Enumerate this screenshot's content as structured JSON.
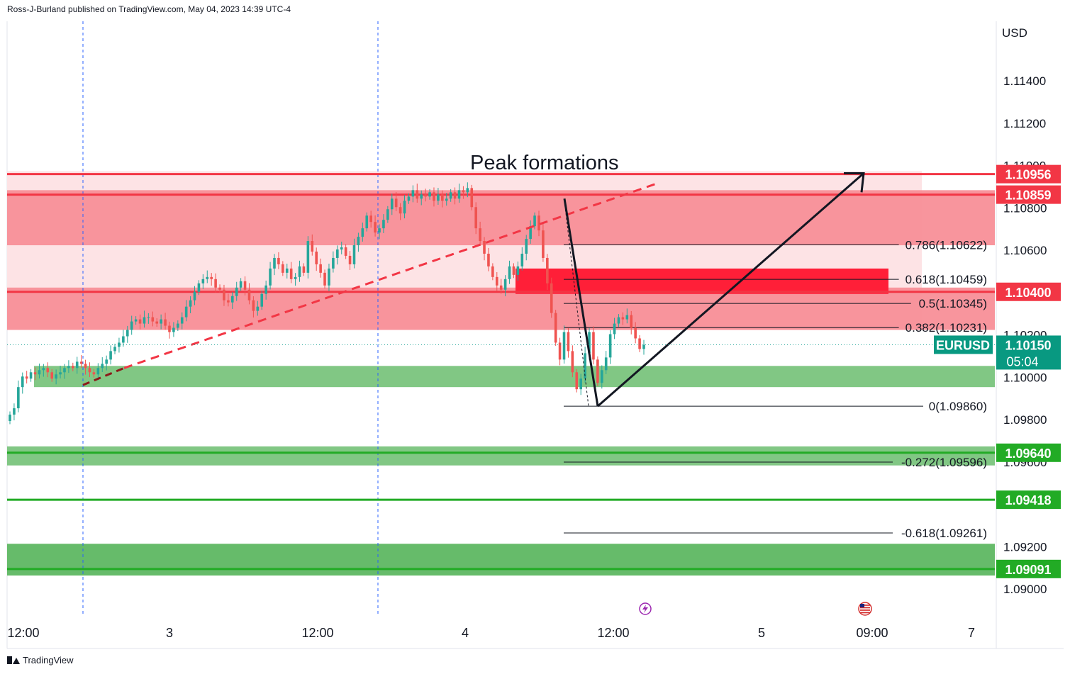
{
  "header": {
    "publisher_line": "Ross-J-Burland published on TradingView.com, May 04, 2023 14:39 UTC-4"
  },
  "footer": {
    "brand": "TradingView"
  },
  "chart_data": {
    "type": "candlestick",
    "symbol": "EURUSD",
    "currency": "USD",
    "annotation_title": "Peak formations",
    "last_price": 1.1015,
    "last_price_label": "1.10150",
    "countdown": "05:04",
    "ylim": [
      1.0885,
      1.1165
    ],
    "y_ticks": [
      1.114,
      1.112,
      1.11,
      1.108,
      1.106,
      1.104,
      1.102,
      1.1,
      1.098,
      1.096,
      1.094,
      1.092,
      1.09
    ],
    "y_tick_labels": [
      "1.11400",
      "1.11200",
      "1.11000",
      "1.10800",
      "1.10600",
      "",
      "1.10200",
      "1.10000",
      "1.09800",
      "1.09600",
      "",
      "1.09200",
      "1.09000"
    ],
    "x_tick_labels": [
      "12:00",
      "3",
      "12:00",
      "4",
      "12:00",
      "5",
      "09:00",
      "7"
    ],
    "price_lines": [
      {
        "value": 1.10956,
        "label": "1.10956",
        "color": "#f23645"
      },
      {
        "value": 1.10859,
        "label": "1.10859",
        "color": "#f23645"
      },
      {
        "value": 1.104,
        "label": "1.10400",
        "color": "#f23645"
      },
      {
        "value": 1.0964,
        "label": "1.09640",
        "color": "#22ab25"
      },
      {
        "value": 1.09418,
        "label": "1.09418",
        "color": "#22ab25"
      },
      {
        "value": 1.09091,
        "label": "1.09091",
        "color": "#22ab25"
      }
    ],
    "resistance_zones": [
      {
        "from": 1.1062,
        "to": 1.1088
      },
      {
        "from": 1.1022,
        "to": 1.1042
      },
      {
        "from": 1.1039,
        "to": 1.1051
      }
    ],
    "support_zones": [
      {
        "from": 1.0995,
        "to": 1.1005
      },
      {
        "from": 1.0958,
        "to": 1.0967
      },
      {
        "from": 1.0906,
        "to": 1.0921
      }
    ],
    "fib_levels": [
      {
        "ratio": "0.786",
        "value": 1.10622,
        "label": "0.786(1.10622)"
      },
      {
        "ratio": "0.618",
        "value": 1.10459,
        "label": "0.618(1.10459)"
      },
      {
        "ratio": "0.5",
        "value": 1.10345,
        "label": "0.5(1.10345)"
      },
      {
        "ratio": "0.382",
        "value": 1.10231,
        "label": "0.382(1.10231)"
      },
      {
        "ratio": "0",
        "value": 1.0986,
        "label": "0(1.09860)"
      },
      {
        "ratio": "-0.272",
        "value": 1.09596,
        "label": "-0.272(1.09596)"
      },
      {
        "ratio": "-0.618",
        "value": 1.09261,
        "label": "-0.618(1.09261)"
      }
    ],
    "closes": [
      1.0982,
      1.0985,
      1.0995,
      1.1,
      1.0999,
      1.1002,
      1.1001,
      1.1003,
      1.1004,
      1.1002,
      1.0999,
      1.1001,
      1.1002,
      1.1004,
      1.1005,
      1.1004,
      1.1007,
      1.1006,
      1.1004,
      1.1002,
      1.1001,
      1.1004,
      1.1006,
      1.1008,
      1.1012,
      1.1014,
      1.1016,
      1.1019,
      1.1022,
      1.1026,
      1.1027,
      1.1025,
      1.1028,
      1.1028,
      1.1026,
      1.1025,
      1.1027,
      1.1024,
      1.1021,
      1.1023,
      1.1025,
      1.1028,
      1.1033,
      1.1036,
      1.104,
      1.1044,
      1.1046,
      1.1047,
      1.1046,
      1.1042,
      1.1041,
      1.1036,
      1.1035,
      1.1038,
      1.1042,
      1.1045,
      1.1041,
      1.1036,
      1.1031,
      1.1033,
      1.1039,
      1.1043,
      1.1051,
      1.1056,
      1.1053,
      1.1049,
      1.1051,
      1.1046,
      1.1047,
      1.1052,
      1.1049,
      1.1064,
      1.1059,
      1.1053,
      1.1049,
      1.1043,
      1.1051,
      1.1056,
      1.106,
      1.1061,
      1.1057,
      1.1053,
      1.1062,
      1.1066,
      1.107,
      1.1076,
      1.1073,
      1.1068,
      1.107,
      1.1074,
      1.1079,
      1.1084,
      1.108,
      1.1077,
      1.1083,
      1.1085,
      1.1088,
      1.1084,
      1.1086,
      1.1085,
      1.1087,
      1.1083,
      1.1086,
      1.1083,
      1.1084,
      1.1087,
      1.1084,
      1.1088,
      1.1087,
      1.1089,
      1.108,
      1.107,
      1.1064,
      1.1058,
      1.1052,
      1.1047,
      1.1043,
      1.1041,
      1.1046,
      1.1052,
      1.1048,
      1.1052,
      1.1058,
      1.1065,
      1.1071,
      1.1076,
      1.1069,
      1.1056,
      1.1044,
      1.103,
      1.1016,
      1.1008,
      1.1021,
      1.1012,
      1.1002,
      1.0994,
      1.0999,
      1.1011,
      1.1021,
      1.1008,
      1.0997,
      1.1003,
      1.1009,
      1.102,
      1.1025,
      1.1028,
      1.1027,
      1.1029,
      1.1023,
      1.1018,
      1.1013,
      1.1015
    ]
  },
  "drawings": {
    "arrow_label": ""
  }
}
